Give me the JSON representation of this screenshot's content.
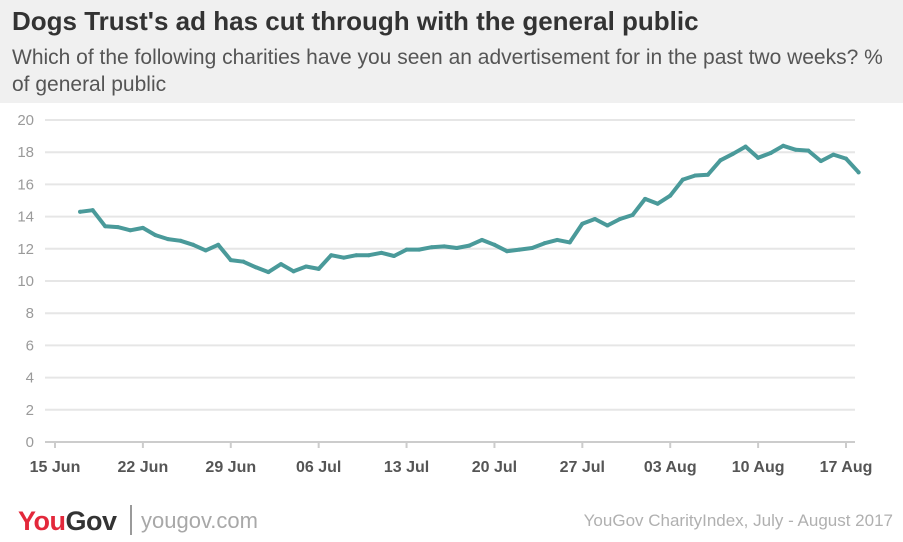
{
  "header": {
    "title": "Dogs Trust's ad has cut through with the general public",
    "subtitle": "Which of the following charities have you seen an advertisement for in the past two weeks? % of general public"
  },
  "footer": {
    "logo_you": "You",
    "logo_gov": "Gov",
    "website": "yougov.com",
    "source": "YouGov CharityIndex, July - August 2017"
  },
  "colors": {
    "line": "#4a9a9a",
    "grid": "#e6e6e6",
    "tick_text": "#9a9a9a",
    "x_tick_text": "#555555"
  },
  "chart_data": {
    "type": "line",
    "title": "Dogs Trust's ad has cut through with the general public",
    "xlabel": "",
    "ylabel": "",
    "ylim": [
      0,
      20
    ],
    "yticks": [
      0,
      2,
      4,
      6,
      8,
      10,
      12,
      14,
      16,
      18,
      20
    ],
    "grid": true,
    "xticks": [
      "15 Jun",
      "22 Jun",
      "29 Jun",
      "06 Jul",
      "13 Jul",
      "20 Jul",
      "27 Jul",
      "03 Aug",
      "10 Aug",
      "17 Aug"
    ],
    "x_start": "2017-06-15",
    "x_end": "2017-08-17",
    "series": [
      {
        "name": "",
        "points": [
          [
            "2017-06-17",
            14.3
          ],
          [
            "2017-06-18",
            14.4
          ],
          [
            "2017-06-19",
            13.4
          ],
          [
            "2017-06-20",
            13.35
          ],
          [
            "2017-06-21",
            13.15
          ],
          [
            "2017-06-22",
            13.3
          ],
          [
            "2017-06-23",
            12.85
          ],
          [
            "2017-06-24",
            12.6
          ],
          [
            "2017-06-25",
            12.5
          ],
          [
            "2017-06-26",
            12.25
          ],
          [
            "2017-06-27",
            11.9
          ],
          [
            "2017-06-28",
            12.25
          ],
          [
            "2017-06-29",
            11.3
          ],
          [
            "2017-06-30",
            11.2
          ],
          [
            "2017-07-01",
            10.85
          ],
          [
            "2017-07-02",
            10.55
          ],
          [
            "2017-07-03",
            11.05
          ],
          [
            "2017-07-04",
            10.6
          ],
          [
            "2017-07-05",
            10.9
          ],
          [
            "2017-07-06",
            10.75
          ],
          [
            "2017-07-07",
            11.6
          ],
          [
            "2017-07-08",
            11.45
          ],
          [
            "2017-07-09",
            11.6
          ],
          [
            "2017-07-10",
            11.6
          ],
          [
            "2017-07-11",
            11.75
          ],
          [
            "2017-07-12",
            11.55
          ],
          [
            "2017-07-13",
            11.95
          ],
          [
            "2017-07-14",
            11.95
          ],
          [
            "2017-07-15",
            12.1
          ],
          [
            "2017-07-16",
            12.15
          ],
          [
            "2017-07-17",
            12.05
          ],
          [
            "2017-07-18",
            12.2
          ],
          [
            "2017-07-19",
            12.55
          ],
          [
            "2017-07-20",
            12.25
          ],
          [
            "2017-07-21",
            11.85
          ],
          [
            "2017-07-22",
            11.95
          ],
          [
            "2017-07-23",
            12.05
          ],
          [
            "2017-07-24",
            12.35
          ],
          [
            "2017-07-25",
            12.55
          ],
          [
            "2017-07-26",
            12.4
          ],
          [
            "2017-07-27",
            13.55
          ],
          [
            "2017-07-28",
            13.85
          ],
          [
            "2017-07-29",
            13.45
          ],
          [
            "2017-07-30",
            13.85
          ],
          [
            "2017-07-31",
            14.1
          ],
          [
            "2017-08-01",
            15.1
          ],
          [
            "2017-08-02",
            14.8
          ],
          [
            "2017-08-03",
            15.3
          ],
          [
            "2017-08-04",
            16.3
          ],
          [
            "2017-08-05",
            16.55
          ],
          [
            "2017-08-06",
            16.6
          ],
          [
            "2017-08-07",
            17.5
          ],
          [
            "2017-08-08",
            17.9
          ],
          [
            "2017-08-09",
            18.35
          ],
          [
            "2017-08-10",
            17.65
          ],
          [
            "2017-08-11",
            17.95
          ],
          [
            "2017-08-12",
            18.4
          ],
          [
            "2017-08-13",
            18.15
          ],
          [
            "2017-08-14",
            18.1
          ],
          [
            "2017-08-15",
            17.45
          ],
          [
            "2017-08-16",
            17.85
          ],
          [
            "2017-08-17",
            17.6
          ],
          [
            "2017-08-18",
            16.75
          ]
        ]
      }
    ]
  }
}
